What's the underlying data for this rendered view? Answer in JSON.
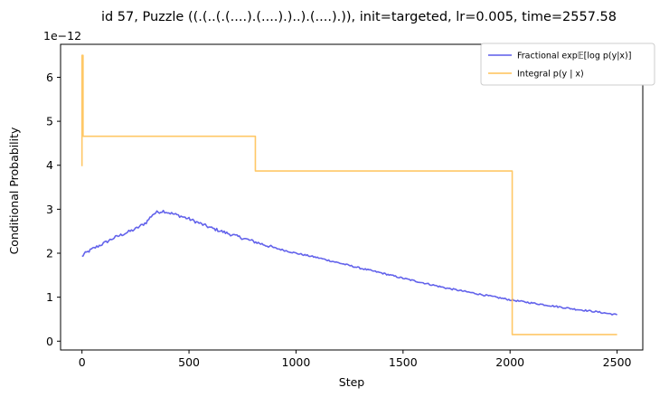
{
  "chart_data": {
    "type": "line",
    "title": "id 57, Puzzle ((.(..(.(....).(....).)..).(....).)), init=targeted, lr=0.005, time=2557.58",
    "xlabel": "Step",
    "ylabel": "Conditional Probability",
    "offset_label": "1e−12",
    "xlim": [
      -100,
      2620
    ],
    "ylim": [
      -0.2,
      6.75
    ],
    "xticks": [
      0,
      500,
      1000,
      1500,
      2000,
      2500
    ],
    "yticks": [
      0,
      1,
      2,
      3,
      4,
      5,
      6
    ],
    "grid": false,
    "legend_position": "top-right",
    "series": [
      {
        "name": "Fractional",
        "color": "#5b5bea",
        "style": "noisy",
        "x": [
          0,
          10,
          50,
          100,
          150,
          200,
          250,
          300,
          330,
          350,
          380,
          400,
          450,
          500,
          600,
          700,
          800,
          900,
          1000,
          1100,
          1200,
          1300,
          1400,
          1500,
          1600,
          1700,
          1800,
          1900,
          2000,
          2100,
          2200,
          2300,
          2400,
          2500
        ],
        "values": [
          1.92,
          1.98,
          2.1,
          2.22,
          2.35,
          2.45,
          2.55,
          2.7,
          2.88,
          2.93,
          2.96,
          2.93,
          2.86,
          2.78,
          2.58,
          2.42,
          2.27,
          2.12,
          2.0,
          1.9,
          1.78,
          1.66,
          1.55,
          1.43,
          1.32,
          1.21,
          1.12,
          1.03,
          0.94,
          0.87,
          0.8,
          0.73,
          0.67,
          0.6
        ]
      },
      {
        "name": "Integral",
        "color": "#ffc257",
        "style": "step",
        "x": [
          0,
          0,
          5,
          5,
          810,
          810,
          2010,
          2010,
          2500
        ],
        "values": [
          3.98,
          6.5,
          6.5,
          4.66,
          4.66,
          3.87,
          3.87,
          0.15,
          0.15
        ]
      }
    ],
    "legend": [
      {
        "label": "Fractional exp𝔼[log p(y|x)]"
      },
      {
        "label": "Integral p(y | x)"
      }
    ]
  }
}
